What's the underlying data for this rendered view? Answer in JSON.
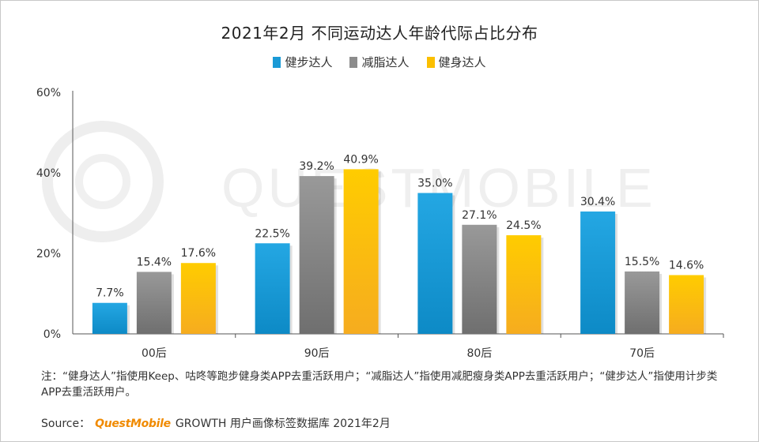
{
  "chart_data": {
    "type": "bar",
    "title": "2021年2月 不同运动达人年龄代际占比分布",
    "categories": [
      "00后",
      "90后",
      "80后",
      "70后"
    ],
    "series": [
      {
        "name": "健步达人",
        "color": "#1a9ad6",
        "values": [
          7.7,
          22.5,
          35.0,
          30.4
        ],
        "labels": [
          "7.7%",
          "22.5%",
          "35.0%",
          "30.4%"
        ]
      },
      {
        "name": "减脂达人",
        "color": "#8c8c8c",
        "values": [
          15.4,
          39.2,
          27.1,
          15.5
        ],
        "labels": [
          "15.4%",
          "39.2%",
          "27.1%",
          "15.5%"
        ]
      },
      {
        "name": "健身达人",
        "color": "#fbbf00",
        "values": [
          17.6,
          40.9,
          24.5,
          14.6
        ],
        "labels": [
          "17.6%",
          "40.9%",
          "24.5%",
          "14.6%"
        ]
      }
    ],
    "ylim": [
      0,
      60
    ],
    "yticks": [
      0,
      20,
      40,
      60
    ],
    "ytick_labels": [
      "0%",
      "20%",
      "40%",
      "60%"
    ],
    "xlabel": "",
    "ylabel": "",
    "legend_position": "top-center",
    "grid": false
  },
  "watermark": "QUESTMOBILE",
  "note": "注：“健身达人”指使用Keep、咕咚等跑步健身类APP去重活跃用户；“减脂达人”指使用减肥瘦身类APP去重活跃用户；“健步达人”指使用计步类APP去重活跃用户。",
  "source": {
    "prefix": "Source：",
    "brand": "QuestMobile",
    "text": "GROWTH 用户画像标签数据库 2021年2月"
  }
}
